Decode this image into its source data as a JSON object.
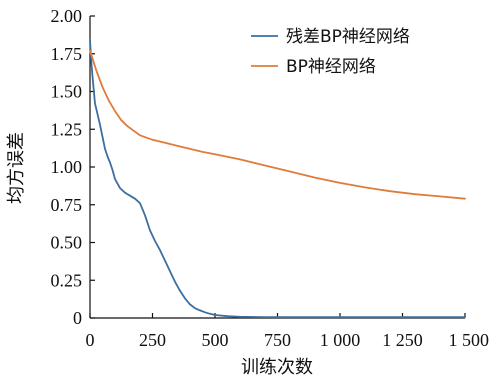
{
  "chart_data": {
    "type": "line",
    "title": "",
    "xlabel": "训练次数",
    "ylabel": "均方误差",
    "xlim": [
      0,
      1500
    ],
    "ylim": [
      0,
      2.0
    ],
    "x_ticks": [
      0,
      250,
      500,
      750,
      1000,
      1250,
      1500
    ],
    "x_tick_labels": [
      "0",
      "250",
      "500",
      "750",
      "1 000",
      "1 250",
      "1 500"
    ],
    "y_ticks": [
      0,
      0.25,
      0.5,
      0.75,
      1.0,
      1.25,
      1.5,
      1.75,
      2.0
    ],
    "y_tick_labels": [
      "0",
      "0.25",
      "0.50",
      "0.75",
      "1.00",
      "1.25",
      "1.50",
      "1.75",
      "2.00"
    ],
    "grid": false,
    "legend_position": "top-right",
    "series": [
      {
        "name": "残差BP神经网络",
        "color": "#3a6f9f",
        "x": [
          0,
          5,
          10,
          20,
          30,
          40,
          50,
          60,
          70,
          80,
          90,
          100,
          110,
          120,
          140,
          160,
          180,
          200,
          220,
          240,
          260,
          280,
          300,
          320,
          340,
          360,
          380,
          400,
          420,
          440,
          460,
          480,
          500,
          550,
          600,
          700,
          800,
          1000,
          1200,
          1500
        ],
        "values": [
          1.84,
          1.7,
          1.6,
          1.42,
          1.35,
          1.28,
          1.2,
          1.12,
          1.07,
          1.03,
          0.98,
          0.92,
          0.89,
          0.86,
          0.83,
          0.81,
          0.79,
          0.76,
          0.68,
          0.58,
          0.51,
          0.45,
          0.38,
          0.31,
          0.24,
          0.18,
          0.13,
          0.09,
          0.065,
          0.05,
          0.038,
          0.028,
          0.02,
          0.012,
          0.008,
          0.006,
          0.005,
          0.005,
          0.005,
          0.005
        ]
      },
      {
        "name": "BP神经网络",
        "color": "#e07b39",
        "x": [
          0,
          25,
          50,
          75,
          100,
          125,
          150,
          175,
          200,
          250,
          300,
          350,
          400,
          450,
          500,
          600,
          700,
          800,
          900,
          1000,
          1100,
          1200,
          1300,
          1400,
          1500
        ],
        "values": [
          1.77,
          1.64,
          1.53,
          1.44,
          1.37,
          1.31,
          1.27,
          1.24,
          1.21,
          1.18,
          1.16,
          1.14,
          1.12,
          1.1,
          1.085,
          1.05,
          1.01,
          0.97,
          0.93,
          0.895,
          0.865,
          0.84,
          0.82,
          0.805,
          0.79
        ]
      }
    ]
  }
}
